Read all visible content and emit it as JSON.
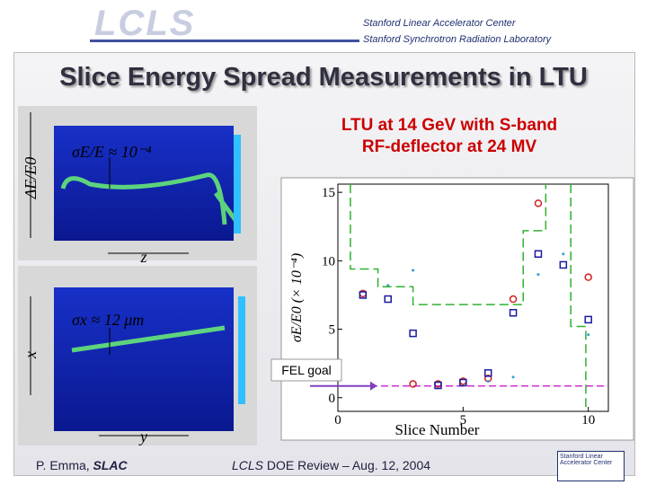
{
  "header": {
    "logo": "LCLS",
    "org1": "Stanford Linear Accelerator Center",
    "org2": "Stanford Synchrotron Radiation Laboratory"
  },
  "title": "Slice Energy Spread Measurements in LTU",
  "subtitle": [
    "LTU at 14 GeV with S-band",
    "RF-deflector at 24 MV"
  ],
  "images": {
    "top_note": "σE/E ≈ 10⁻⁴",
    "top_axis": "ΔE/E0",
    "top_dir": "z",
    "bottom_note": "σx ≈ 12 μm",
    "bottom_axis": "x",
    "bottom_dir": "y"
  },
  "footer": {
    "author": "P. Emma,",
    "org": "SLAC",
    "event_a": "LCLS",
    "event_b": "DOE Review – Aug. 12, 2004",
    "logo": "Stanford Linear Accelerator Center"
  },
  "chart_data": {
    "type": "scatter",
    "x_label": "Slice Number",
    "y_label": "σE/E0 (× 10⁻⁴)",
    "xlim": [
      0,
      10.8
    ],
    "ylim": [
      -1,
      15.6
    ],
    "xticks": [
      0,
      5,
      10
    ],
    "yticks": [
      0,
      5,
      10,
      15
    ],
    "series": [
      {
        "name": "red",
        "marker": "circle",
        "color": "#d02020",
        "x": [
          1,
          3,
          4,
          5,
          6,
          7,
          8,
          10
        ],
        "values": [
          7.6,
          1.0,
          1.0,
          1.2,
          1.4,
          7.2,
          14.2,
          8.8
        ]
      },
      {
        "name": "blue",
        "marker": "square",
        "color": "#1a1aa0",
        "x": [
          1,
          2,
          3,
          4,
          5,
          6,
          7,
          8,
          9,
          10
        ],
        "values": [
          7.5,
          7.2,
          4.7,
          0.9,
          1.1,
          1.8,
          6.2,
          10.5,
          9.7,
          5.7
        ]
      },
      {
        "name": "cyan",
        "marker": "dot",
        "color": "#30a0d0",
        "x": [
          2,
          3,
          6,
          7,
          8,
          9,
          10
        ],
        "values": [
          8.2,
          9.3,
          1.2,
          1.5,
          9.0,
          10.5,
          4.6
        ]
      },
      {
        "name": "green",
        "marker": "dashed-line",
        "color": "#30b030",
        "x": [
          0.5,
          0.5,
          1.6,
          1.6,
          3.0,
          3.0,
          7.4,
          7.4,
          8.3,
          8.3,
          null,
          9.3,
          9.3,
          9.9,
          9.9
        ],
        "values": [
          15.6,
          9.4,
          9.4,
          8.1,
          8.1,
          6.8,
          6.8,
          12.2,
          12.2,
          15.6,
          null,
          15.6,
          5.2,
          5.2,
          -1
        ]
      }
    ],
    "goal": {
      "label": "FEL goal",
      "value": 0.85,
      "color": "#d030d0"
    }
  }
}
